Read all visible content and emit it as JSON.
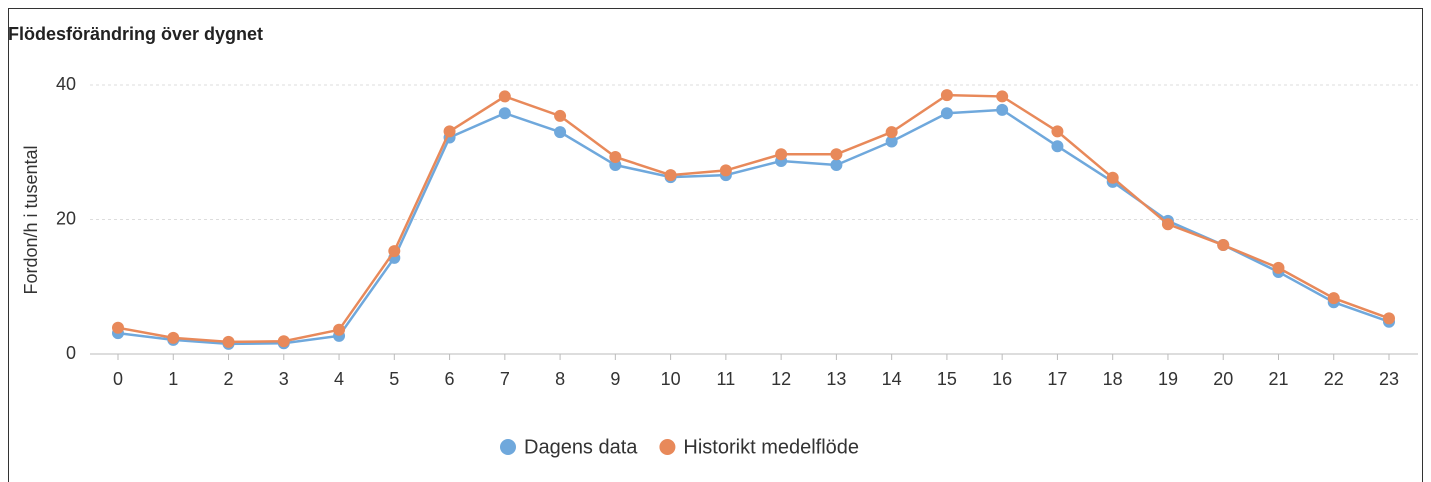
{
  "chart_data": {
    "type": "line",
    "title": "Flödesförändring över dygnet",
    "y_label": "Fordon/h i tusental",
    "categories": [
      "0",
      "1",
      "2",
      "3",
      "4",
      "5",
      "6",
      "7",
      "8",
      "9",
      "10",
      "11",
      "12",
      "13",
      "14",
      "15",
      "16",
      "17",
      "18",
      "19",
      "20",
      "21",
      "22",
      "23"
    ],
    "series": [
      {
        "name": "Dagens data",
        "color": "#6fa8dc",
        "values": [
          3.1,
          2.1,
          1.5,
          1.6,
          2.7,
          14.3,
          32.2,
          35.8,
          33.0,
          28.1,
          26.3,
          26.6,
          28.7,
          28.1,
          31.6,
          35.8,
          36.3,
          30.9,
          25.6,
          19.8,
          16.2,
          12.2,
          7.7,
          4.8
        ]
      },
      {
        "name": "Historikt medelflöde",
        "color": "#e8895a",
        "values": [
          3.9,
          2.4,
          1.8,
          1.9,
          3.6,
          15.3,
          33.1,
          38.3,
          35.4,
          29.3,
          26.6,
          27.3,
          29.7,
          29.7,
          33.0,
          38.5,
          38.3,
          33.1,
          26.2,
          19.3,
          16.2,
          12.8,
          8.3,
          5.3
        ]
      }
    ],
    "ylim": [
      0,
      40
    ],
    "yticks": [
      0,
      20,
      40
    ],
    "grid": true,
    "legend": "bottom"
  }
}
